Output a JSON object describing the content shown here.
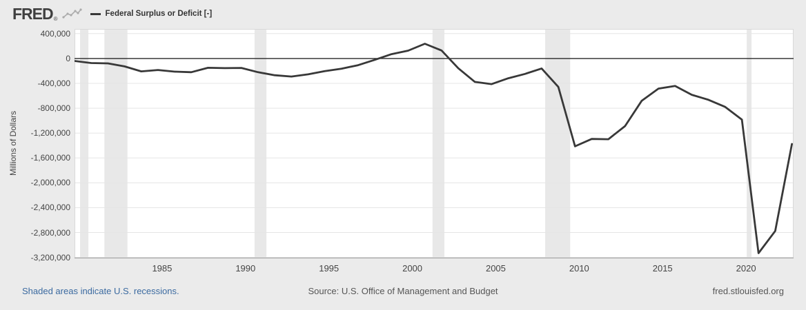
{
  "header": {
    "logo_text": "FRED",
    "logo_registered": "®",
    "legend": {
      "label": "Federal Surplus or Deficit [-]"
    }
  },
  "footer": {
    "recession_note": "Shaded areas indicate U.S. recessions.",
    "source": "Source: U.S. Office of Management and Budget",
    "site": "fred.stlouisfed.org"
  },
  "chart_data": {
    "type": "line",
    "title": "Federal Surplus or Deficit [-]",
    "ylabel": "Millions of Dollars",
    "xlabel": "",
    "x": [
      1979,
      1980,
      1981,
      1982,
      1983,
      1984,
      1985,
      1986,
      1987,
      1988,
      1989,
      1990,
      1991,
      1992,
      1993,
      1994,
      1995,
      1996,
      1997,
      1998,
      1999,
      2000,
      2001,
      2002,
      2003,
      2004,
      2005,
      2006,
      2007,
      2008,
      2009,
      2010,
      2011,
      2012,
      2013,
      2014,
      2015,
      2016,
      2017,
      2018,
      2019,
      2020,
      2021,
      2022
    ],
    "values": [
      -40729,
      -73830,
      -78968,
      -127977,
      -207802,
      -185367,
      -212308,
      -221227,
      -149730,
      -155178,
      -152639,
      -221036,
      -269238,
      -290321,
      -255051,
      -203186,
      -163952,
      -107431,
      -21884,
      69270,
      125610,
      236241,
      128236,
      -157758,
      -377585,
      -412727,
      -318346,
      -248181,
      -160701,
      -458553,
      -1412688,
      -1294373,
      -1299599,
      -1086963,
      -679775,
      -484793,
      -441960,
      -584651,
      -665446,
      -779137,
      -983591,
      -3131917,
      -2775535,
      -1375389
    ],
    "x_ticks": [
      1985,
      1990,
      1995,
      2000,
      2005,
      2010,
      2015,
      2020
    ],
    "y_ticks": [
      400000,
      0,
      -400000,
      -800000,
      -1200000,
      -1600000,
      -2000000,
      -2400000,
      -2800000,
      -3200000
    ],
    "ylim": [
      -3215000,
      475000
    ],
    "xlim": [
      1979.75,
      2022.85
    ],
    "x_plot_offset": 0.75,
    "recessions": [
      [
        1980.08,
        1980.58
      ],
      [
        1981.54,
        1982.92
      ],
      [
        1990.54,
        1991.25
      ],
      [
        2001.21,
        2001.92
      ],
      [
        2007.96,
        2009.46
      ],
      [
        2020.04,
        2020.33
      ]
    ],
    "grid": "horizontal",
    "legend_position": "top-left",
    "colors": {
      "line": "#383838",
      "zero_line": "#262626",
      "grid": "#e5e5e5",
      "recession_band": "#e8e8e8",
      "plot_bg": "#ffffff",
      "page_bg": "#ebebeb",
      "axis_line": "#9a9a9a",
      "link": "#3b6aa0",
      "text": "#444444"
    }
  }
}
